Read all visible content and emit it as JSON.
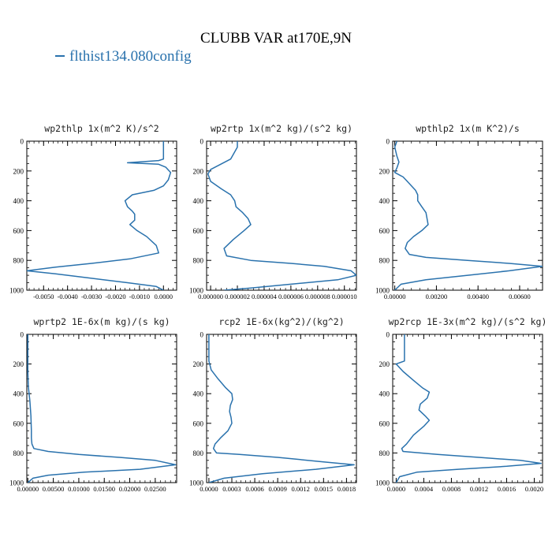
{
  "figure": {
    "title": "CLUBB VAR at170E,9N",
    "legend_label": "flthist134.080config",
    "line_color": "#2a72ad"
  },
  "chart_data": [
    {
      "type": "line",
      "title": "wp2thlp  1x(m^2 K)/s^2",
      "ylim": [
        1000,
        0
      ],
      "xlim": [
        -0.0057,
        0.00055
      ],
      "yticks": [
        "0",
        "200",
        "400",
        "600",
        "800",
        "1000"
      ],
      "xticks": [
        -0.005,
        -0.004,
        -0.003,
        -0.002,
        -0.001,
        0.0
      ],
      "xtick_labels": [
        "-0.0050",
        "-0.0040",
        "-0.0030",
        "-0.0020",
        "-0.0010",
        "0.0000"
      ],
      "series": [
        {
          "name": "flthist134.080config",
          "x": [
            0.0,
            0.0,
            0.0,
            -0.0002,
            -0.0015,
            -0.0002,
            0.0001,
            0.0003,
            0.0002,
            0.0,
            -0.0004,
            -0.0013,
            -0.0016,
            -0.0015,
            -0.0013,
            -0.0012,
            -0.0012,
            -0.0014,
            -0.0011,
            -0.0007,
            -0.0003,
            -0.0002,
            -0.0014,
            -0.003,
            -0.0045,
            -0.0057,
            -0.0045,
            -0.003,
            -0.0015,
            -0.0003,
            0.0
          ],
          "y": [
            0,
            50,
            120,
            130,
            145,
            155,
            175,
            210,
            260,
            300,
            330,
            360,
            400,
            440,
            470,
            490,
            530,
            560,
            600,
            640,
            700,
            750,
            790,
            820,
            845,
            870,
            890,
            920,
            950,
            975,
            1000
          ]
        }
      ]
    },
    {
      "type": "line",
      "title": "wp2rtp  1x(m^2 kg)/(s^2 kg)",
      "ylim": [
        1000,
        0
      ],
      "xlim": [
        -3e-07,
        1.09e-05
      ],
      "yticks": [
        "0",
        "200",
        "400",
        "600",
        "800",
        "1000"
      ],
      "xticks": [
        0.0,
        2e-06,
        4e-06,
        6e-06,
        8e-06,
        1e-05
      ],
      "xtick_labels": [
        "0.000000",
        "0.000002",
        "0.000004",
        "0.000006",
        "0.000008",
        "0.000010"
      ],
      "series": [
        {
          "name": "flthist134.080config",
          "x": [
            2e-06,
            2e-06,
            1.5e-06,
            0.0,
            -2e-07,
            0.0,
            8e-07,
            1.5e-06,
            1.8e-06,
            1.9e-06,
            2.4e-06,
            2.8e-06,
            3e-06,
            2.5e-06,
            1.7e-06,
            1e-06,
            1.2e-06,
            3e-06,
            6e-06,
            8.5e-06,
            1.05e-05,
            1.09e-05,
            9.5e-06,
            6e-06,
            3e-06,
            1e-06
          ],
          "y": [
            0,
            40,
            120,
            190,
            220,
            270,
            320,
            360,
            400,
            440,
            480,
            520,
            560,
            600,
            660,
            720,
            770,
            800,
            820,
            840,
            870,
            900,
            930,
            960,
            985,
            1000
          ]
        }
      ]
    },
    {
      "type": "line",
      "title": "wpthlp2  1x(m K^2)/s",
      "ylim": [
        1000,
        0
      ],
      "xlim": [
        -0.0001,
        0.0071
      ],
      "yticks": [
        "0",
        "200",
        "400",
        "600",
        "800",
        "1000"
      ],
      "xticks": [
        0.0,
        0.002,
        0.004,
        0.006
      ],
      "xtick_labels": [
        "0.00000",
        "0.00200",
        "0.00400",
        "0.00600"
      ],
      "series": [
        {
          "name": "flthist134.080config",
          "x": [
            0.0001,
            0.0,
            0.0001,
            0.0002,
            0.0001,
            0.0,
            0.0004,
            0.0006,
            0.0008,
            0.001,
            0.0011,
            0.0011,
            0.0013,
            0.0015,
            0.0016,
            0.0013,
            0.0009,
            0.0006,
            0.0005,
            0.0007,
            0.0015,
            0.0035,
            0.0055,
            0.0071,
            0.0055,
            0.0035,
            0.0015,
            0.0003,
            0.0
          ],
          "y": [
            0,
            40,
            100,
            140,
            180,
            210,
            240,
            270,
            300,
            330,
            360,
            400,
            440,
            480,
            560,
            600,
            640,
            680,
            720,
            760,
            780,
            800,
            820,
            840,
            870,
            900,
            930,
            960,
            1000
          ]
        }
      ]
    },
    {
      "type": "line",
      "title": "wprtp2  1E-6x(m kg)/(s kg)",
      "ylim": [
        1000,
        0
      ],
      "xlim": [
        -0.0002,
        0.0292
      ],
      "yticks": [
        "0",
        "200",
        "400",
        "600",
        "800",
        "1000"
      ],
      "xticks": [
        0.0,
        0.005,
        0.01,
        0.015,
        0.02,
        0.025
      ],
      "xtick_labels": [
        "0.00000",
        "0.00500",
        "0.01000",
        "0.01500",
        "0.02000",
        "0.02500"
      ],
      "series": [
        {
          "name": "flthist134.080config",
          "x": [
            0.0,
            0.0,
            0.0001,
            0.0004,
            0.0006,
            0.0007,
            0.0007,
            0.0008,
            0.0012,
            0.004,
            0.01,
            0.018,
            0.025,
            0.029,
            0.022,
            0.011,
            0.004,
            0.001,
            0.0
          ],
          "y": [
            0,
            250,
            350,
            450,
            550,
            650,
            700,
            740,
            770,
            790,
            810,
            830,
            850,
            880,
            910,
            930,
            950,
            970,
            1000
          ]
        }
      ]
    },
    {
      "type": "line",
      "title": "rcp2  1E-6x(kg^2)/(kg^2)",
      "ylim": [
        1000,
        0
      ],
      "xlim": [
        -3e-05,
        0.00193
      ],
      "yticks": [
        "0",
        "200",
        "400",
        "600",
        "800",
        "1000"
      ],
      "xticks": [
        0.0,
        0.0003,
        0.0006,
        0.0009,
        0.0012,
        0.0015,
        0.0018
      ],
      "xtick_labels": [
        "0.0000",
        "0.0003",
        "0.0006",
        "0.0009",
        "0.0012",
        "0.0015",
        "0.0018"
      ],
      "series": [
        {
          "name": "flthist134.080config",
          "x": [
            0.0,
            0.0,
            3e-05,
            0.00012,
            0.00022,
            0.0003,
            0.00031,
            0.00028,
            0.00027,
            0.00029,
            0.0003,
            0.00025,
            0.00015,
            8e-05,
            6e-05,
            0.0001,
            0.0004,
            0.0009,
            0.0015,
            0.0019,
            0.0014,
            0.0007,
            0.0002,
            0.0
          ],
          "y": [
            0,
            180,
            240,
            300,
            360,
            400,
            440,
            480,
            520,
            560,
            600,
            650,
            700,
            740,
            770,
            800,
            810,
            830,
            860,
            880,
            910,
            940,
            970,
            1000
          ]
        }
      ]
    },
    {
      "type": "line",
      "title": "wp2rcp  1E-3x(m^2 kg)/(s^2 kg)",
      "ylim": [
        1000,
        0
      ],
      "xlim": [
        -5e-05,
        0.00212
      ],
      "yticks": [
        "0",
        "200",
        "400",
        "600",
        "800",
        "1000"
      ],
      "xticks": [
        0.0,
        0.0004,
        0.0008,
        0.0012,
        0.0016,
        0.002
      ],
      "xtick_labels": [
        "0.0000",
        "0.0004",
        "0.0008",
        "0.0012",
        "0.0016",
        "0.0020"
      ],
      "series": [
        {
          "name": "flthist134.080config",
          "x": [
            0.00012,
            0.00012,
            0.0,
            0.0001,
            0.00025,
            0.00038,
            0.00048,
            0.00045,
            0.00035,
            0.00033,
            0.00042,
            0.00048,
            0.0004,
            0.00025,
            0.00015,
            8e-05,
            0.0001,
            0.0006,
            0.0012,
            0.0018,
            0.0021,
            0.0016,
            0.0009,
            0.0003,
            5e-05,
            0.0
          ],
          "y": [
            0,
            180,
            200,
            250,
            310,
            360,
            390,
            430,
            470,
            510,
            550,
            580,
            620,
            680,
            740,
            770,
            790,
            810,
            830,
            850,
            870,
            890,
            910,
            930,
            960,
            1000
          ]
        }
      ]
    }
  ]
}
